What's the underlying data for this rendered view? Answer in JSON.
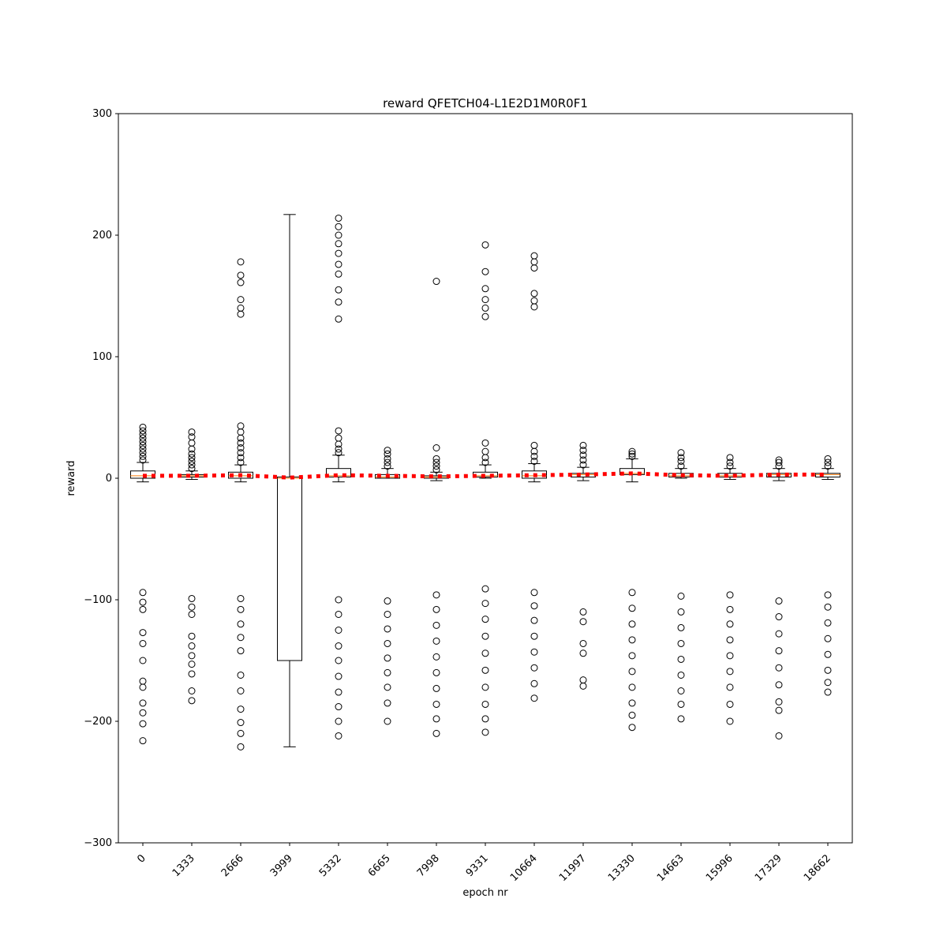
{
  "chart_data": {
    "type": "box",
    "title": "reward QFETCH04-L1E2D1M0R0F1",
    "xlabel": "epoch nr",
    "ylabel": "reward",
    "categories": [
      "0",
      "1333",
      "2666",
      "3999",
      "5332",
      "6665",
      "7998",
      "9331",
      "10664",
      "11997",
      "13330",
      "14663",
      "15996",
      "17329",
      "18662"
    ],
    "boxes": [
      {
        "whislo": -3,
        "q1": 0,
        "med": 2,
        "q3": 6,
        "whishi": 13,
        "fliers": [
          15,
          18,
          21,
          24,
          27,
          30,
          33,
          36,
          39,
          42,
          -94,
          -102,
          -108,
          -127,
          -136,
          -150,
          -167,
          -172,
          -185,
          -193,
          -202,
          -216
        ]
      },
      {
        "whislo": -1,
        "q1": 1,
        "med": 2,
        "q3": 3,
        "whishi": 6,
        "fliers": [
          8,
          11,
          14,
          17,
          20,
          24,
          29,
          34,
          38,
          -99,
          -106,
          -112,
          -130,
          -138,
          -146,
          -153,
          -161,
          -175,
          -183
        ]
      },
      {
        "whislo": -3,
        "q1": 0,
        "med": 2,
        "q3": 5,
        "whishi": 11,
        "fliers": [
          13,
          17,
          21,
          25,
          29,
          33,
          38,
          43,
          135,
          140,
          147,
          161,
          167,
          178,
          -99,
          -108,
          -120,
          -131,
          -142,
          -162,
          -175,
          -190,
          -201,
          -210,
          -221
        ]
      },
      {
        "whislo": -221,
        "q1": -150,
        "med": 0,
        "q3": 1,
        "whishi": 217,
        "fliers": []
      },
      {
        "whislo": -3,
        "q1": 1,
        "med": 2,
        "q3": 8,
        "whishi": 19,
        "fliers": [
          21,
          24,
          28,
          33,
          39,
          131,
          145,
          155,
          168,
          176,
          185,
          193,
          200,
          207,
          214,
          -100,
          -112,
          -125,
          -138,
          -150,
          -163,
          -176,
          -188,
          -200,
          -212
        ]
      },
      {
        "whislo": 0,
        "q1": 0,
        "med": 1,
        "q3": 3,
        "whishi": 8,
        "fliers": [
          10,
          13,
          16,
          20,
          23,
          -101,
          -112,
          -124,
          -136,
          -148,
          -160,
          -172,
          -185,
          -200
        ]
      },
      {
        "whislo": -2,
        "q1": 0,
        "med": 1,
        "q3": 2,
        "whishi": 5,
        "fliers": [
          7,
          10,
          13,
          16,
          25,
          162,
          -96,
          -108,
          -121,
          -134,
          -147,
          -160,
          -173,
          -186,
          -198,
          -210
        ]
      },
      {
        "whislo": 0,
        "q1": 1,
        "med": 2,
        "q3": 5,
        "whishi": 11,
        "fliers": [
          13,
          17,
          22,
          29,
          133,
          140,
          147,
          156,
          170,
          192,
          -91,
          -103,
          -116,
          -130,
          -144,
          -158,
          -172,
          -186,
          -198,
          -209
        ]
      },
      {
        "whislo": -3,
        "q1": 0,
        "med": 2,
        "q3": 6,
        "whishi": 12,
        "fliers": [
          14,
          18,
          22,
          27,
          141,
          146,
          152,
          173,
          178,
          183,
          -94,
          -105,
          -117,
          -130,
          -143,
          -156,
          -169,
          -181
        ]
      },
      {
        "whislo": -2,
        "q1": 1,
        "med": 3,
        "q3": 4,
        "whishi": 9,
        "fliers": [
          11,
          15,
          19,
          23,
          27,
          -110,
          -118,
          -136,
          -144,
          -166,
          -171
        ]
      },
      {
        "whislo": -3,
        "q1": 3,
        "med": 4,
        "q3": 8,
        "whishi": 16,
        "fliers": [
          18,
          20,
          22,
          -94,
          -107,
          -120,
          -133,
          -146,
          -159,
          -172,
          -185,
          -195,
          -205
        ]
      },
      {
        "whislo": 0,
        "q1": 1,
        "med": 2,
        "q3": 4,
        "whishi": 8,
        "fliers": [
          10,
          14,
          17,
          21,
          -97,
          -110,
          -123,
          -136,
          -149,
          -162,
          -175,
          -186,
          -198
        ]
      },
      {
        "whislo": -1,
        "q1": 1,
        "med": 2,
        "q3": 4,
        "whishi": 8,
        "fliers": [
          10,
          13,
          17,
          -96,
          -108,
          -120,
          -133,
          -146,
          -159,
          -172,
          -186,
          -200
        ]
      },
      {
        "whislo": -2,
        "q1": 1,
        "med": 3,
        "q3": 4,
        "whishi": 8,
        "fliers": [
          10,
          13,
          15,
          -101,
          -114,
          -128,
          -142,
          -156,
          -170,
          -184,
          -191,
          -212
        ]
      },
      {
        "whislo": -1,
        "q1": 1,
        "med": 3,
        "q3": 4,
        "whishi": 8,
        "fliers": [
          10,
          13,
          16,
          -96,
          -106,
          -119,
          -132,
          -145,
          -158,
          -168,
          -176
        ]
      }
    ],
    "means": [
      2,
      2,
      2.5,
      0.5,
      2.5,
      2,
      1.5,
      2,
      2.5,
      3,
      4,
      2.5,
      2,
      3,
      3
    ],
    "mean_color": "#ff0000",
    "median_color": "#ff7f0e",
    "ylim": [
      -300,
      300
    ],
    "yticks": [
      {
        "value": -300,
        "label": "−300"
      },
      {
        "value": -200,
        "label": "−200"
      },
      {
        "value": -100,
        "label": "−100"
      },
      0,
      100,
      200,
      300
    ]
  }
}
